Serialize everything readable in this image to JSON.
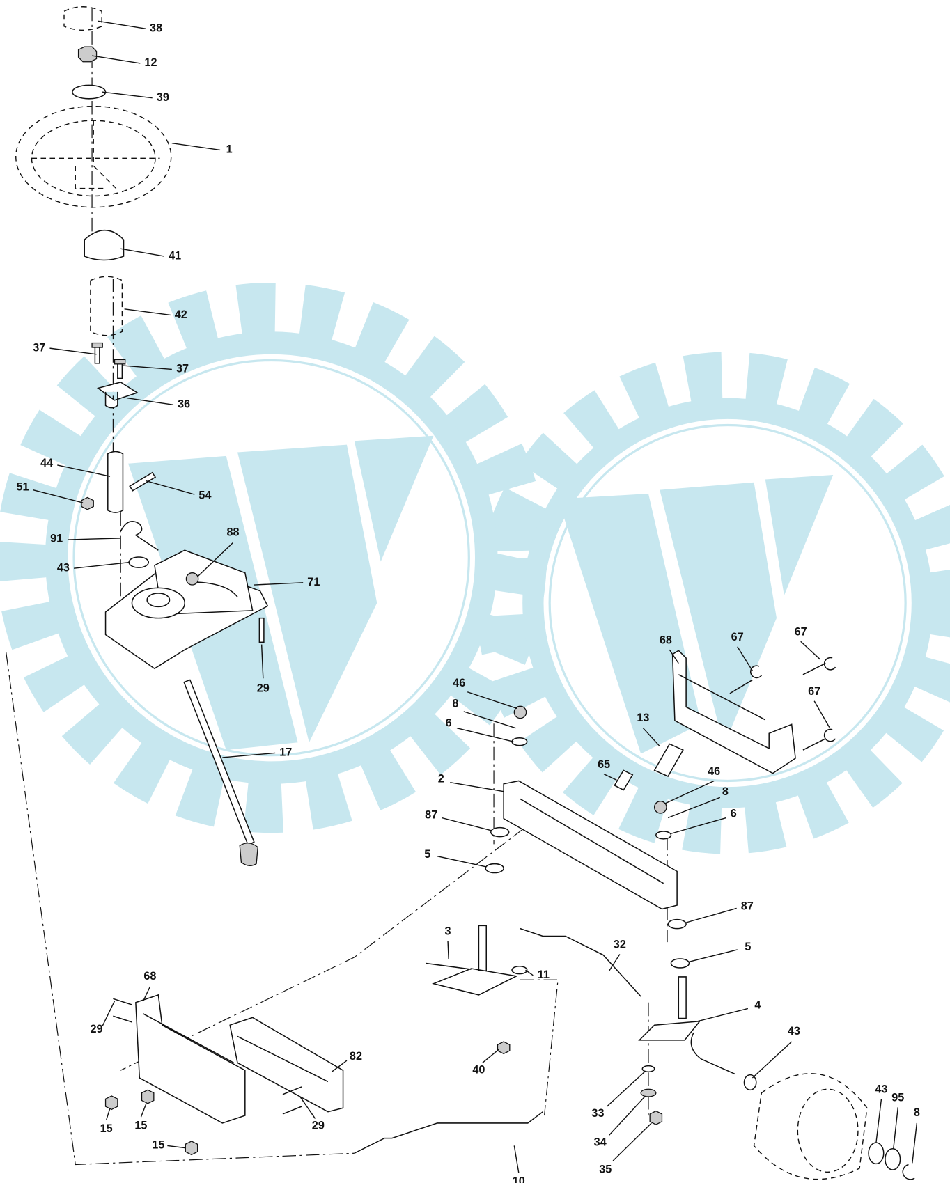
{
  "callouts": [
    "38",
    "12",
    "39",
    "1",
    "41",
    "42",
    "37",
    "37",
    "36",
    "44",
    "51",
    "54",
    "91",
    "88",
    "43",
    "71",
    "29",
    "17",
    "68",
    "67",
    "67",
    "67",
    "46",
    "8",
    "6",
    "13",
    "65",
    "46",
    "8",
    "6",
    "2",
    "87",
    "5",
    "87",
    "5",
    "32",
    "3",
    "11",
    "4",
    "68",
    "29",
    "82",
    "43",
    "40",
    "29",
    "15",
    "15",
    "15",
    "10",
    "33",
    "34",
    "35",
    "43",
    "95",
    "8"
  ]
}
